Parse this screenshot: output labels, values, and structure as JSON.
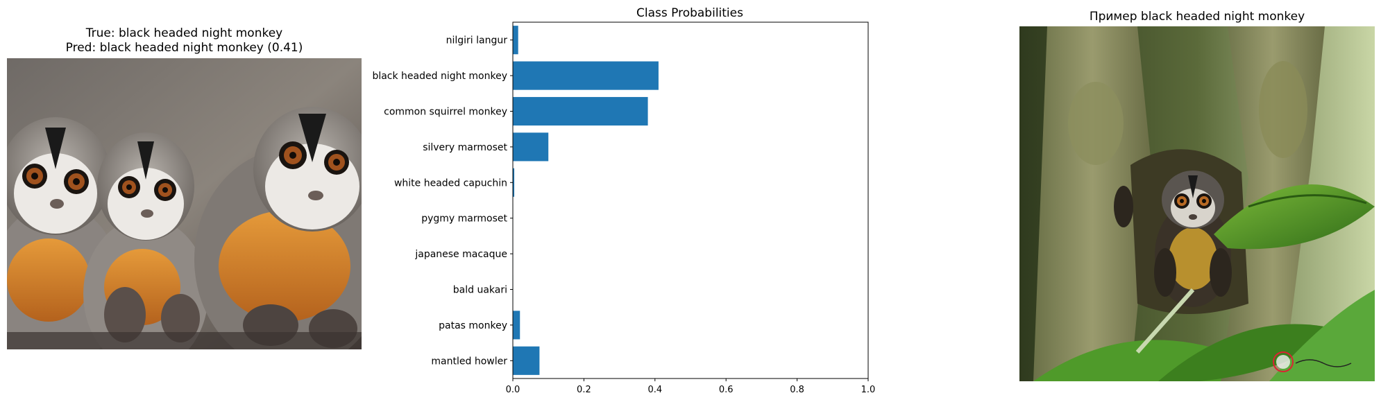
{
  "left_panel": {
    "title_line1": "True: black headed night monkey",
    "title_line2": "Pred: black headed night monkey (0.41)"
  },
  "right_panel": {
    "title": "Пример black headed night monkey"
  },
  "chart_data": {
    "type": "bar",
    "orientation": "horizontal",
    "title": "Class Probabilities",
    "categories": [
      "nilgiri langur",
      "black headed night monkey",
      "common squirrel monkey",
      "silvery marmoset",
      "white headed capuchin",
      "pygmy marmoset",
      "japanese macaque",
      "bald uakari",
      "patas monkey",
      "mantled howler"
    ],
    "values": [
      0.015,
      0.41,
      0.38,
      0.1,
      0.004,
      0.001,
      0.001,
      0.001,
      0.02,
      0.075
    ],
    "xlim": [
      0,
      1.0
    ],
    "xticks": [
      "0.0",
      "0.2",
      "0.4",
      "0.6",
      "0.8",
      "1.0"
    ],
    "xlabel": "",
    "ylabel": "",
    "bar_color": "#1f77b4",
    "grid": false
  }
}
